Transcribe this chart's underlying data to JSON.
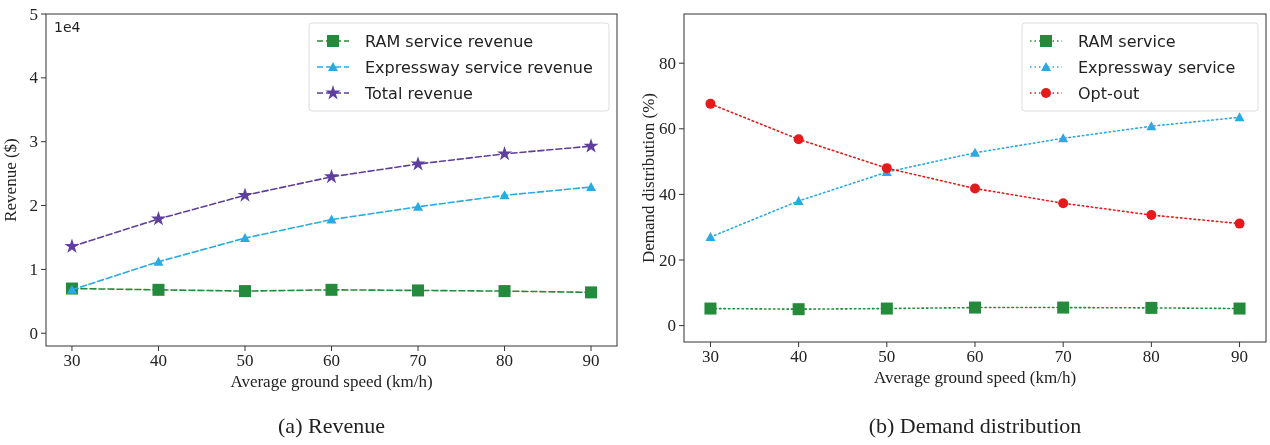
{
  "chart_data": [
    {
      "type": "line",
      "title": "(a) Revenue",
      "xlabel": "Average ground speed (km/h)",
      "ylabel": "Revenue ($)",
      "annotations": [
        "1e4"
      ],
      "x": [
        30,
        40,
        50,
        60,
        70,
        80,
        90
      ],
      "xlim": [
        27,
        93
      ],
      "xticks": [
        30,
        40,
        50,
        60,
        70,
        80,
        90
      ],
      "ylim": [
        -0.2,
        5
      ],
      "yticks": [
        0,
        1,
        2,
        3,
        4,
        5
      ],
      "line_style": "dashed",
      "legend": "top right",
      "grid": false,
      "series": [
        {
          "name": "RAM service revenue",
          "color": "#238b3b",
          "marker": "square",
          "values": [
            0.7,
            0.68,
            0.66,
            0.68,
            0.67,
            0.66,
            0.64
          ]
        },
        {
          "name": "Expressway service revenue",
          "color": "#29abe2",
          "marker": "triangle",
          "values": [
            0.68,
            1.12,
            1.49,
            1.78,
            1.98,
            2.16,
            2.29
          ]
        },
        {
          "name": "Total revenue",
          "color": "#5e3f9e",
          "marker": "star",
          "values": [
            1.36,
            1.79,
            2.16,
            2.45,
            2.65,
            2.81,
            2.93
          ]
        }
      ]
    },
    {
      "type": "line",
      "title": "(b) Demand distribution",
      "xlabel": "Average ground speed (km/h)",
      "ylabel": "Demand distribution (%)",
      "x": [
        30,
        40,
        50,
        60,
        70,
        80,
        90
      ],
      "xlim": [
        27,
        93
      ],
      "xticks": [
        30,
        40,
        50,
        60,
        70,
        80,
        90
      ],
      "ylim": [
        -5,
        95
      ],
      "yticks": [
        0,
        20,
        40,
        60,
        80
      ],
      "line_style": "dotted",
      "legend": "top right",
      "grid": false,
      "series": [
        {
          "name": "RAM service",
          "color": "#238b3b",
          "marker": "square",
          "values": [
            5.2,
            5.0,
            5.2,
            5.5,
            5.5,
            5.4,
            5.2
          ]
        },
        {
          "name": "Expressway service",
          "color": "#29abe2",
          "marker": "triangle",
          "values": [
            27.0,
            38.0,
            46.8,
            52.7,
            57.1,
            60.8,
            63.5
          ]
        },
        {
          "name": "Opt-out",
          "color": "#e41a1c",
          "marker": "circle",
          "values": [
            67.6,
            56.8,
            48.0,
            41.8,
            37.3,
            33.7,
            31.1
          ]
        }
      ]
    }
  ]
}
